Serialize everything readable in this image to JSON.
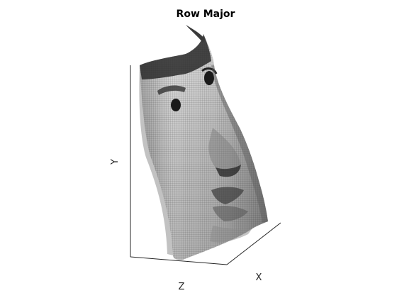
{
  "figure": {
    "title": "Row Major",
    "labels": {
      "x": "X",
      "y": "Y",
      "z": "Z"
    }
  },
  "surface": {
    "description_type": "texture-mapped 3D mesh surface",
    "colormap": "grayscale"
  }
}
